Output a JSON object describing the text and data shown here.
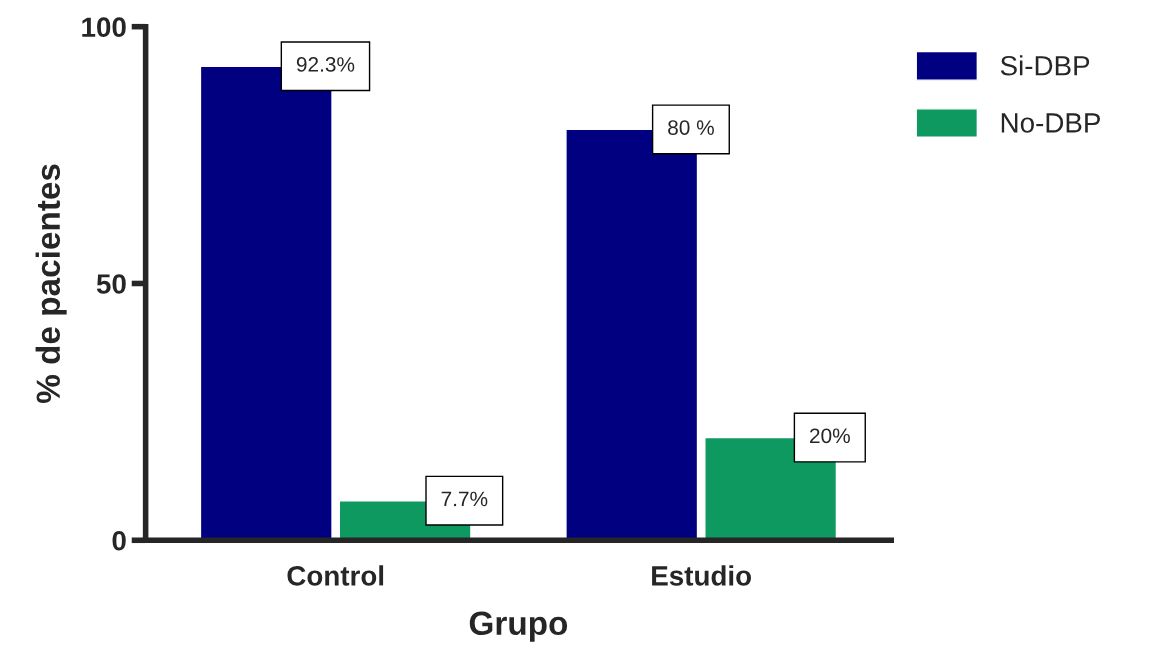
{
  "chart_data": {
    "type": "bar",
    "categories": [
      "Control",
      "Estudio"
    ],
    "xlabel": "Grupo",
    "ylabel": "% de pacientes",
    "series": [
      {
        "name": "Si-DBP",
        "color": "#000080",
        "values": [
          92.3,
          80
        ],
        "value_labels": [
          "92.3%",
          "80 %"
        ]
      },
      {
        "name": "No-DBP",
        "color": "#0e9960",
        "values": [
          7.7,
          20
        ],
        "value_labels": [
          "7.7%",
          "20%"
        ]
      }
    ],
    "ylim": [
      0,
      100
    ],
    "yticks": [
      0,
      50,
      100
    ],
    "grid": false,
    "legend": "top right"
  }
}
